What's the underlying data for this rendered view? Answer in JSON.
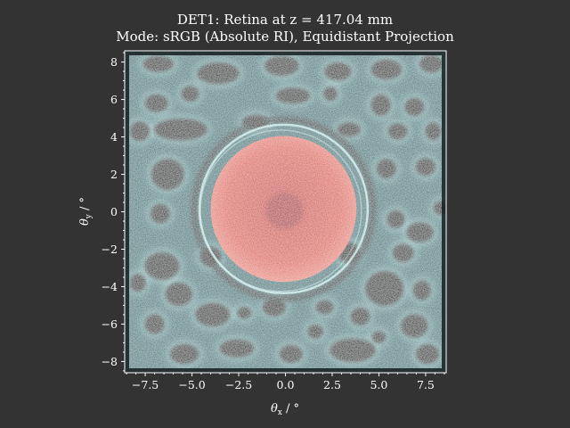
{
  "chart_data": {
    "type": "heatmap",
    "title_line1": "DET1: Retina at z = 417.04 mm",
    "title_line2": "Mode: sRGB (Absolute RI), Equidistant Projection",
    "xlabel_sym": "θ",
    "xlabel_sub": "x",
    "xlabel_unit": " / °",
    "ylabel_sym": "θ",
    "ylabel_sub": "y",
    "ylabel_unit": " / °",
    "xlim": [
      -8.6,
      8.6
    ],
    "ylim": [
      -8.6,
      8.6
    ],
    "xticks": [
      -7.5,
      -5.0,
      -2.5,
      0.0,
      2.5,
      5.0,
      7.5
    ],
    "xtick_labels": [
      "−7.5",
      "−5.0",
      "−2.5",
      "0.0",
      "2.5",
      "5.0",
      "7.5"
    ],
    "yticks": [
      -8,
      -6,
      -4,
      -2,
      0,
      2,
      4,
      6,
      8
    ],
    "ytick_labels": [
      "−8",
      "−6",
      "−4",
      "−2",
      "0",
      "2",
      "4",
      "6",
      "8"
    ],
    "grid": false,
    "features": {
      "central_disc": {
        "cx": -0.1,
        "cy": 0.15,
        "r": 3.9,
        "color": "#d9594e"
      },
      "inner_spot": {
        "cx": -0.05,
        "cy": 0.05,
        "r": 1.0,
        "color": "#b02a30"
      },
      "halo_ring": {
        "cx": -0.1,
        "cy": 0.15,
        "r": 4.5,
        "color": "#c8e8e6"
      },
      "background_color": "#3f7b7e",
      "dark_blob_color": "#0a1618",
      "edge_color": "#bfe0dc"
    },
    "dark_blobs": [
      [
        -6.8,
        7.9,
        0.8,
        0.4
      ],
      [
        -3.6,
        7.4,
        1.1,
        0.55
      ],
      [
        -0.2,
        7.8,
        0.9,
        0.5
      ],
      [
        2.8,
        7.5,
        0.7,
        0.45
      ],
      [
        5.4,
        7.6,
        0.8,
        0.5
      ],
      [
        7.8,
        7.9,
        0.6,
        0.45
      ],
      [
        -6.9,
        5.8,
        0.6,
        0.45
      ],
      [
        -5.1,
        6.3,
        0.45,
        0.4
      ],
      [
        0.4,
        6.2,
        0.9,
        0.4
      ],
      [
        2.4,
        6.3,
        0.35,
        0.35
      ],
      [
        5.1,
        5.7,
        0.5,
        0.55
      ],
      [
        6.9,
        5.6,
        0.5,
        0.45
      ],
      [
        -7.8,
        4.3,
        0.5,
        0.5
      ],
      [
        -5.6,
        4.4,
        1.4,
        0.55
      ],
      [
        -1.6,
        4.8,
        0.7,
        0.35
      ],
      [
        3.4,
        4.4,
        0.6,
        0.35
      ],
      [
        6.0,
        4.3,
        0.5,
        0.4
      ],
      [
        7.9,
        4.3,
        0.4,
        0.45
      ],
      [
        -6.3,
        2.0,
        0.85,
        0.8
      ],
      [
        5.4,
        2.3,
        0.5,
        0.5
      ],
      [
        7.5,
        2.4,
        0.5,
        0.45
      ],
      [
        8.3,
        0.2,
        0.35,
        0.35
      ],
      [
        -6.7,
        -0.1,
        0.5,
        0.5
      ],
      [
        5.9,
        -0.4,
        0.45,
        0.45
      ],
      [
        7.2,
        -1.1,
        0.7,
        0.5
      ],
      [
        -6.6,
        -2.9,
        0.9,
        0.7
      ],
      [
        -4.0,
        -2.4,
        0.55,
        0.5
      ],
      [
        3.4,
        -2.2,
        0.55,
        0.55
      ],
      [
        6.3,
        -2.2,
        0.55,
        0.45
      ],
      [
        -7.9,
        -3.8,
        0.4,
        0.45
      ],
      [
        -5.7,
        -4.4,
        0.7,
        0.6
      ],
      [
        5.3,
        -4.1,
        1.0,
        0.9
      ],
      [
        7.3,
        -4.2,
        0.45,
        0.5
      ],
      [
        -7.0,
        -6.0,
        0.5,
        0.5
      ],
      [
        -3.9,
        -5.5,
        0.9,
        0.6
      ],
      [
        -0.6,
        -5.1,
        0.6,
        0.45
      ],
      [
        2.1,
        -5.1,
        0.45,
        0.35
      ],
      [
        4.0,
        -5.6,
        0.5,
        0.45
      ],
      [
        6.9,
        -6.1,
        0.7,
        0.6
      ],
      [
        -5.4,
        -7.6,
        0.75,
        0.5
      ],
      [
        -2.6,
        -7.3,
        0.9,
        0.45
      ],
      [
        0.3,
        -7.6,
        0.6,
        0.45
      ],
      [
        3.6,
        -7.4,
        1.2,
        0.6
      ],
      [
        7.6,
        -7.6,
        0.6,
        0.5
      ],
      [
        1.6,
        -6.4,
        0.4,
        0.35
      ],
      [
        -2.2,
        -5.4,
        0.35,
        0.3
      ],
      [
        5.0,
        -6.7,
        0.35,
        0.3
      ]
    ]
  }
}
